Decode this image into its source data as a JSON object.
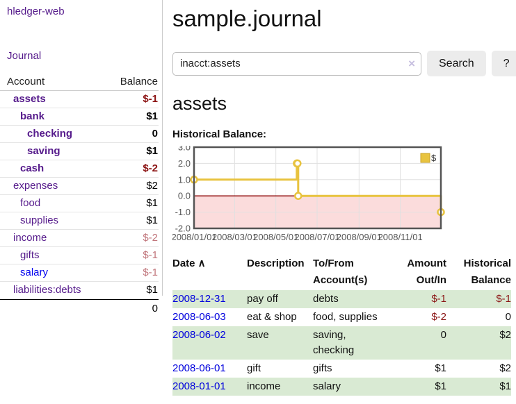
{
  "sidebar": {
    "app_title": "hledger-web",
    "nav": [
      {
        "label": "Journal"
      }
    ],
    "accounts_table": {
      "headers": {
        "account": "Account",
        "balance": "Balance"
      },
      "rows": [
        {
          "account": "assets",
          "depth": 1,
          "balance": "$-1",
          "bold": true,
          "negative": true
        },
        {
          "account": "bank",
          "depth": 2,
          "balance": "$1",
          "bold": true,
          "negative": false
        },
        {
          "account": "checking",
          "depth": 3,
          "balance": "0",
          "bold": true,
          "negative": false
        },
        {
          "account": "saving",
          "depth": 3,
          "balance": "$1",
          "bold": true,
          "negative": false
        },
        {
          "account": "cash",
          "depth": 2,
          "balance": "$-2",
          "bold": true,
          "negative": true
        },
        {
          "account": "expenses",
          "depth": 1,
          "balance": "$2",
          "bold": false,
          "negative": false
        },
        {
          "account": "food",
          "depth": 2,
          "balance": "$1",
          "bold": false,
          "negative": false
        },
        {
          "account": "supplies",
          "depth": 2,
          "balance": "$1",
          "bold": false,
          "negative": false
        },
        {
          "account": "income",
          "depth": 1,
          "balance": "$-2",
          "bold": false,
          "negative": true
        },
        {
          "account": "gifts",
          "depth": 2,
          "balance": "$-1",
          "bold": false,
          "negative": true
        },
        {
          "account": "salary",
          "depth": 2,
          "balance": "$-1",
          "bold": false,
          "negative": true,
          "link_color": "blue"
        },
        {
          "account": "liabilities:debts",
          "depth": 1,
          "balance": "$1",
          "bold": false,
          "negative": false
        }
      ],
      "total": "0"
    }
  },
  "header": {
    "title": "sample.journal"
  },
  "search": {
    "value": "inacct:assets",
    "clear_icon": "×",
    "search_button": "Search",
    "help_button": "?"
  },
  "account_page": {
    "heading": "assets",
    "chart_label": "Historical Balance:"
  },
  "chart_data": {
    "type": "line",
    "title": "Historical Balance:",
    "step": true,
    "series": [
      {
        "name": "$",
        "points": [
          {
            "date": "2008-01-01",
            "value": 1
          },
          {
            "date": "2008-06-01",
            "value": 2
          },
          {
            "date": "2008-06-02",
            "value": 2
          },
          {
            "date": "2008-06-03",
            "value": 0
          },
          {
            "date": "2008-12-31",
            "value": -1
          }
        ]
      }
    ],
    "xlim": [
      "2008-01-01",
      "2008-12-31"
    ],
    "ylim": [
      -2,
      3
    ],
    "x_ticks": [
      "2008/01/01",
      "2008/03/01",
      "2008/05/01",
      "2008/07/01",
      "2008/09/01",
      "2008/11/01"
    ],
    "y_ticks": [
      3.0,
      2.0,
      1.0,
      0.0,
      -1.0,
      -2.0
    ],
    "grid": true,
    "legend": {
      "label": "$",
      "position": "top-right"
    },
    "colors": {
      "line": "#e8c33f",
      "negative_fill": "#fbdcdc",
      "zero_line": "#8b0000",
      "frame": "#545454",
      "gridline": "#e0e0e0"
    }
  },
  "register": {
    "headers": [
      {
        "label": "Date",
        "sort_icon": "∧",
        "align": "left"
      },
      {
        "label": "Description",
        "align": "left"
      },
      {
        "label": "To/From Account(s)",
        "align": "left"
      },
      {
        "label": "Amount Out/In",
        "align": "right"
      },
      {
        "label": "Historical Balance",
        "align": "right"
      }
    ],
    "rows": [
      {
        "date": "2008-12-31",
        "description": "pay off",
        "accounts": "debts",
        "amount": "$-1",
        "amount_negative": true,
        "balance": "$-1",
        "balance_negative": true
      },
      {
        "date": "2008-06-03",
        "description": "eat & shop",
        "accounts": "food, supplies",
        "amount": "$-2",
        "amount_negative": true,
        "balance": "0",
        "balance_negative": false
      },
      {
        "date": "2008-06-02",
        "description": "save",
        "accounts": "saving, checking",
        "amount": "0",
        "amount_negative": false,
        "balance": "$2",
        "balance_negative": false
      },
      {
        "date": "2008-06-01",
        "description": "gift",
        "accounts": "gifts",
        "amount": "$1",
        "amount_negative": false,
        "balance": "$2",
        "balance_negative": false
      },
      {
        "date": "2008-01-01",
        "description": "income",
        "accounts": "salary",
        "amount": "$1",
        "amount_negative": false,
        "balance": "$1",
        "balance_negative": false
      }
    ]
  }
}
